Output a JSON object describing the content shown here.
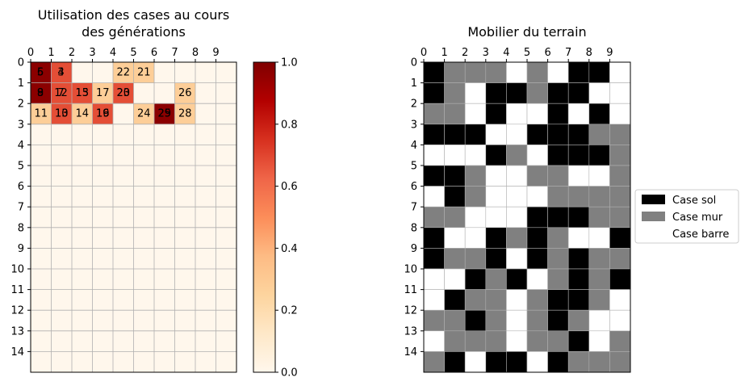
{
  "chart_data": [
    {
      "type": "heatmap",
      "title_lines": [
        "Utilisation des cases au cours",
        "des générations"
      ],
      "x_ticks": [
        "0",
        "1",
        "2",
        "3",
        "4",
        "5",
        "6",
        "7",
        "8",
        "9"
      ],
      "y_ticks": [
        "0",
        "1",
        "2",
        "3",
        "4",
        "5",
        "6",
        "7",
        "8",
        "9",
        "10",
        "11",
        "12",
        "13",
        "14"
      ],
      "colormap": "OrRd",
      "colorbar": {
        "vmin": 0.0,
        "vmax": 1.0,
        "ticks": [
          "0.0",
          "0.2",
          "0.4",
          "0.6",
          "0.8",
          "1.0"
        ]
      },
      "cells": [
        {
          "x": 0,
          "y": 0,
          "value": 0.97,
          "labels": [
            "5",
            "6"
          ]
        },
        {
          "x": 1,
          "y": 0,
          "value": 0.68,
          "labels": [
            "3",
            "4"
          ]
        },
        {
          "x": 4,
          "y": 0,
          "value": 0.28,
          "labels": [
            "22"
          ]
        },
        {
          "x": 5,
          "y": 0,
          "value": 0.28,
          "labels": [
            "21"
          ]
        },
        {
          "x": 0,
          "y": 1,
          "value": 0.97,
          "labels": [
            "8",
            "9"
          ]
        },
        {
          "x": 1,
          "y": 1,
          "value": 0.68,
          "labels": [
            "7",
            "12"
          ]
        },
        {
          "x": 2,
          "y": 1,
          "value": 0.68,
          "labels": [
            "13",
            "15"
          ]
        },
        {
          "x": 3,
          "y": 1,
          "value": 0.28,
          "labels": [
            "17"
          ]
        },
        {
          "x": 4,
          "y": 1,
          "value": 0.68,
          "labels": [
            "20",
            "23"
          ]
        },
        {
          "x": 7,
          "y": 1,
          "value": 0.28,
          "labels": [
            "26"
          ]
        },
        {
          "x": 0,
          "y": 2,
          "value": 0.28,
          "labels": [
            "11"
          ]
        },
        {
          "x": 1,
          "y": 2,
          "value": 0.68,
          "labels": [
            "10",
            "13"
          ]
        },
        {
          "x": 2,
          "y": 2,
          "value": 0.28,
          "labels": [
            "14"
          ]
        },
        {
          "x": 3,
          "y": 2,
          "value": 0.68,
          "labels": [
            "16",
            "19"
          ]
        },
        {
          "x": 5,
          "y": 2,
          "value": 0.28,
          "labels": [
            "24"
          ]
        },
        {
          "x": 6,
          "y": 2,
          "value": 0.97,
          "labels": [
            "25",
            "29"
          ]
        },
        {
          "x": 7,
          "y": 2,
          "value": 0.28,
          "labels": [
            "28"
          ]
        }
      ]
    },
    {
      "type": "heatmap",
      "title": "Mobilier du terrain",
      "x_ticks": [
        "0",
        "1",
        "2",
        "3",
        "4",
        "5",
        "6",
        "7",
        "8",
        "9"
      ],
      "y_ticks": [
        "0",
        "1",
        "2",
        "3",
        "4",
        "5",
        "6",
        "7",
        "8",
        "9",
        "10",
        "11",
        "12",
        "13",
        "14"
      ],
      "categories": {
        "S": {
          "label": "Case sol",
          "color": "#000000"
        },
        "M": {
          "label": "Case mur",
          "color": "#808080"
        },
        "B": {
          "label": "Case barre",
          "color": "#ffffff"
        }
      },
      "grid": [
        "SMMMBMBSSB",
        "SMBSSMSSBB",
        "MMBSBBSBSB",
        "SSSBBSSSMM",
        "BBBSMBSSSM",
        "SSMBBMMBBM",
        "BSMBBBMMMM",
        "MMBBBSSSMM",
        "SBBSMSMBBS",
        "SMMSBSMSMM",
        "BBSMSBMSMS",
        "BSMMBMSSMB",
        "MMSMBMSMBB",
        "BMMMBMMSBM",
        "MSBSSBSMMM"
      ]
    }
  ]
}
